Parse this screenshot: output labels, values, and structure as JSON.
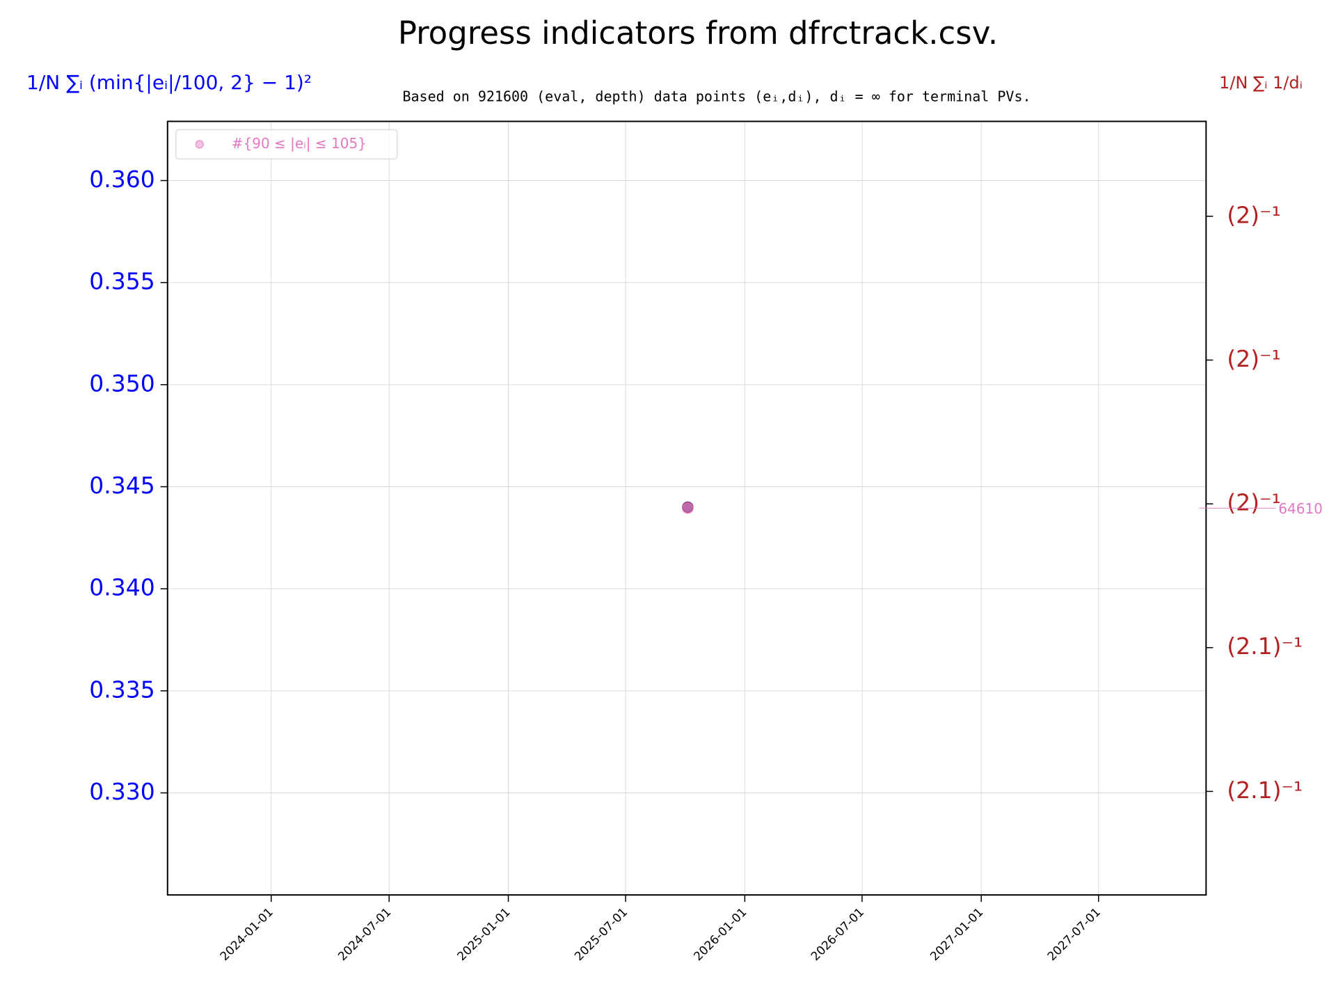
{
  "chart_data": {
    "type": "scatter",
    "title": "Progress indicators from dfrctrack.csv.",
    "subtitle": "Based on 921600 (eval, depth) data points (eᵢ,dᵢ), dᵢ = ∞ for terminal PVs.",
    "ylabel": "1/N ∑ᵢ (min{|eᵢ|/100, 2} − 1)²",
    "y2label": "1/N ∑ᵢ 1/dᵢ",
    "x": [
      "2025-10-05"
    ],
    "xlim": [
      "2023-07-25",
      "2027-12-14"
    ],
    "xticks": [
      "2024-01-01",
      "2024-07-01",
      "2025-01-01",
      "2025-07-01",
      "2026-01-01",
      "2026-07-01",
      "2027-01-01",
      "2027-07-01"
    ],
    "ylim": [
      0.325,
      0.3629
    ],
    "yticks": [
      {
        "value": 0.36,
        "label": "0.360"
      },
      0.355,
      {
        "value": 0.35,
        "label": "0.350"
      },
      0.345,
      {
        "value": 0.34,
        "label": "0.340"
      },
      0.335,
      {
        "value": 0.33,
        "label": "0.330"
      }
    ],
    "y2lim": [
      0.48112,
      0.50264
    ],
    "y2ticks": [
      {
        "value": 0.5,
        "label": "(2)⁻¹"
      },
      {
        "value": 0.496,
        "label": "(2)⁻¹"
      },
      {
        "value": 0.492,
        "label": "(2)⁻¹"
      },
      {
        "value": 0.488,
        "label": "(2.1)⁻¹"
      },
      {
        "value": 0.484,
        "label": "(2.1)⁻¹"
      }
    ],
    "y3lim": [
      61380,
      67840
    ],
    "grid": true,
    "legend": "upper left",
    "series": [
      {
        "color": "#0000ff",
        "values": [
          0.344
        ]
      },
      {
        "color": "#b22222",
        "axis": "y2",
        "values": [
          0.4919
        ]
      },
      {
        "name": "#{90 ≤ |eᵢ| ≤ 105}",
        "color": "#e377c2",
        "axis": "y3",
        "values": [
          64610
        ]
      }
    ]
  }
}
